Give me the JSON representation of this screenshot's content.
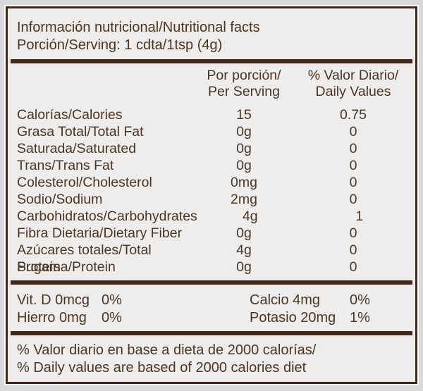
{
  "label": {
    "title": "Información nutricional/Nutritional facts",
    "serving": "Porción/Serving: 1 cdta/1tsp (4g)",
    "columns": {
      "per_serving_line1": "Por porción/",
      "per_serving_line2": "Per Serving",
      "daily_values_line1": "% Valor Diario/",
      "daily_values_line2": "Daily Values"
    },
    "rows": [
      {
        "name": "Calorías/Calories",
        "amount": "15",
        "dv": "0.75"
      },
      {
        "name": "Grasa Total/Total Fat",
        "amount": "0g",
        "dv": "0"
      },
      {
        "name": "Saturada/Saturated",
        "amount": "0g",
        "dv": "0"
      },
      {
        "name": "Trans/Trans Fat",
        "amount": "0g",
        "dv": "0"
      },
      {
        "name": "Colesterol/Cholesterol",
        "amount": "0mg",
        "dv": "0"
      },
      {
        "name": "Sodio/Sodium",
        "amount": "2mg",
        "dv": "0"
      },
      {
        "name": "Carbohidratos/Carbohydrates",
        "amount": "4g",
        "dv": "1"
      },
      {
        "name": "Fibra Dietaria/Dietary Fiber",
        "amount": "0g",
        "dv": "0"
      },
      {
        "name": "Azúcares totales/Total Sugars",
        "amount": "4g",
        "dv": "0"
      },
      {
        "name": "Proteina/Protein",
        "amount": "0g",
        "dv": "0"
      }
    ],
    "micronutrients": {
      "vit_d": {
        "name": "Vit. D 0mcg",
        "dv": "0%"
      },
      "hierro": {
        "name": "Hierro 0mg",
        "dv": "0%"
      },
      "calcio": {
        "name": "Calcio 4mg",
        "dv": "0%"
      },
      "potasio": {
        "name": "Potasio 20mg",
        "dv": "1%"
      }
    },
    "footnote_line1": "% Valor diario en base a dieta de 2000 calorías/",
    "footnote_line2": "% Daily values are based of 2000 calories diet",
    "colors": {
      "text": "#4c3522",
      "border": "#40291a",
      "background_inner": "#eeedec",
      "background_outer": "#d9d9d9",
      "outline": "#ffffff"
    }
  }
}
